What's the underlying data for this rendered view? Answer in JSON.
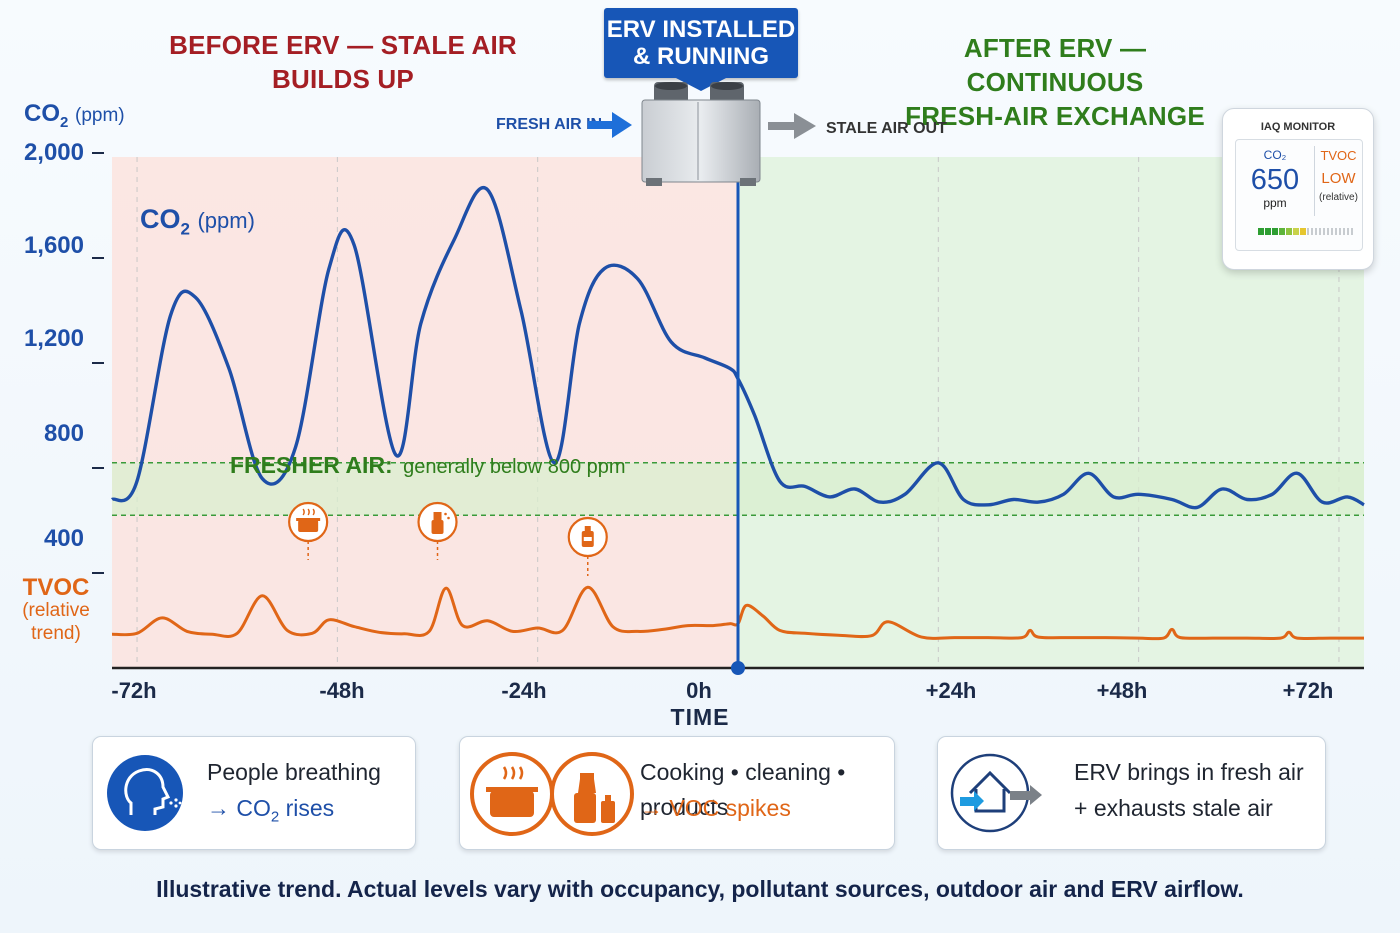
{
  "headings": {
    "before": "BEFORE ERV — STALE AIR BUILDS UP",
    "after_line1": "AFTER ERV — CONTINUOUS",
    "after_line2": "FRESH-AIR EXCHANGE"
  },
  "erv_banner": {
    "line1": "ERV INSTALLED",
    "line2": "& RUNNING"
  },
  "airflow": {
    "in_label": "FRESH AIR IN",
    "out_label": "STALE AIR OUT"
  },
  "colors": {
    "co2": "#1e4fa8",
    "tvoc": "#e06617",
    "before_heading": "#a41e24",
    "after_heading": "#2f7d1c",
    "before_zone": "#fbe3de",
    "after_zone": "#e2f3e0",
    "fresh_band": "#d9efcf"
  },
  "monitor": {
    "title": "IAQ MONITOR",
    "co2_label": "CO₂",
    "co2_value": "650",
    "co2_unit": "ppm",
    "tvoc_label": "TVOC",
    "tvoc_value": "LOW",
    "tvoc_note": "(relative)"
  },
  "chart_data": {
    "type": "line",
    "x_label": "TIME",
    "x_ticks": [
      "-72h",
      "-48h",
      "-24h",
      "0h",
      "+24h",
      "+48h",
      "+72h"
    ],
    "xlim": [
      -75,
      75
    ],
    "y_axis": {
      "title": "CO",
      "title_sub": "2",
      "title_unit": "(ppm)",
      "ticks": [
        "2,000",
        "1,600",
        "1,200",
        "800",
        "400"
      ],
      "tick_values": [
        2000,
        1600,
        1200,
        800,
        400
      ],
      "ylim": [
        0,
        2000
      ]
    },
    "secondary_label": {
      "line1": "TVOC",
      "line2": "(relative",
      "line3": "trend)"
    },
    "event_line_x": 0,
    "fresh_band": {
      "range_ppm": [
        620,
        820
      ],
      "label_bold": "FRESHER AIR:",
      "label": "generally below 800 ppm"
    },
    "series": [
      {
        "name_main": "CO",
        "name_sub": "2",
        "name_unit": "(ppm)",
        "color": "#1e4fa8",
        "x": [
          -75,
          -72,
          -68,
          -65,
          -61,
          -57,
          -53,
          -49,
          -46,
          -41,
          -38,
          -34,
          -30,
          -26,
          -22,
          -19,
          -16,
          -12,
          -8,
          -4,
          -1,
          0,
          2,
          5,
          8,
          11,
          14,
          17,
          20,
          24,
          27,
          30,
          33,
          36,
          39,
          42,
          45,
          48,
          52,
          55,
          58,
          61,
          64,
          67,
          70,
          73,
          75
        ],
        "y": [
          680,
          750,
          1380,
          1450,
          1180,
          760,
          880,
          1560,
          1650,
          850,
          1350,
          1670,
          1860,
          1400,
          820,
          1350,
          1560,
          1520,
          1280,
          1220,
          1180,
          1140,
          1000,
          750,
          730,
          690,
          720,
          670,
          700,
          820,
          680,
          660,
          680,
          670,
          700,
          780,
          690,
          700,
          680,
          650,
          720,
          680,
          700,
          780,
          670,
          690,
          660
        ]
      },
      {
        "name": "TVOC",
        "color": "#e06617",
        "x": [
          -75,
          -72,
          -69,
          -66,
          -63,
          -60,
          -57,
          -54,
          -51,
          -49,
          -46,
          -43,
          -40,
          -37,
          -35,
          -33,
          -30,
          -27,
          -24,
          -21,
          -18,
          -15,
          -12,
          -9,
          -6,
          -3,
          -1,
          0,
          1,
          3,
          5,
          8,
          12,
          16,
          18,
          22,
          26,
          30,
          34,
          35,
          36,
          40,
          44,
          48,
          51,
          52,
          53,
          57,
          61,
          65,
          66,
          67,
          71,
          75
        ],
        "y": [
          0.12,
          0.14,
          0.46,
          0.18,
          0.12,
          0.14,
          0.92,
          0.2,
          0.14,
          0.42,
          0.28,
          0.16,
          0.13,
          0.18,
          1.08,
          0.3,
          0.4,
          0.18,
          0.25,
          0.2,
          1.1,
          0.28,
          0.18,
          0.22,
          0.3,
          0.3,
          0.34,
          0.34,
          0.72,
          0.5,
          0.2,
          0.14,
          0.1,
          0.09,
          0.38,
          0.06,
          0.05,
          0.05,
          0.05,
          0.2,
          0.06,
          0.05,
          0.05,
          0.04,
          0.04,
          0.22,
          0.05,
          0.04,
          0.04,
          0.04,
          0.16,
          0.04,
          0.04,
          0.04
        ]
      }
    ],
    "event_icons": [
      {
        "icon": "cooking-pot-icon",
        "x": -51.5
      },
      {
        "icon": "spray-bottle-icon",
        "x": -36
      },
      {
        "icon": "product-bottle-icon",
        "x": -18
      }
    ]
  },
  "cards": [
    {
      "icon": "person-breathing-icon",
      "line1": "People breathing",
      "line2_prefix": "→ CO",
      "line2_sub": "2",
      "line2_suffix": " rises",
      "accent": "#1e4fa8"
    },
    {
      "icon": "cooking-cleaning-icon",
      "line1": "Cooking • cleaning • products",
      "line2": "→ VOC spikes",
      "accent": "#e06617"
    },
    {
      "icon": "erv-house-icon",
      "line1": "ERV brings in fresh air",
      "line2": "+ exhausts stale air",
      "accent": "#1e4fa8"
    }
  ],
  "footer": "Illustrative trend. Actual levels vary with occupancy, pollutant sources, outdoor air and ERV airflow."
}
